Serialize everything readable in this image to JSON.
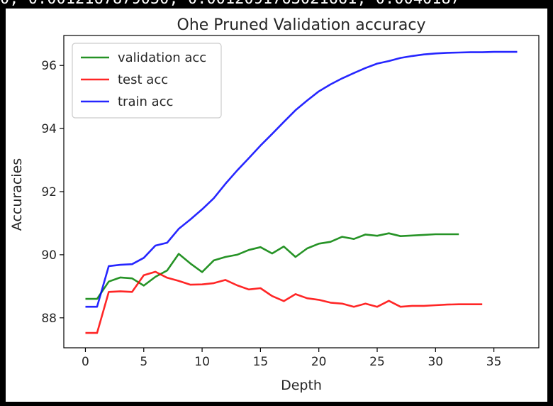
{
  "top_strip_text": "0, 0.0012167879050, 0.0012091763021661, 0.0040187",
  "chart_data": {
    "type": "line",
    "title": "Ohe Pruned Validation accuracy",
    "xlabel": "Depth",
    "ylabel": "Accuracies",
    "xlim": [
      -1.85,
      38.85
    ],
    "ylim": [
      87.05,
      96.95
    ],
    "xticks": [
      0,
      5,
      10,
      15,
      20,
      25,
      30,
      35
    ],
    "yticks": [
      88,
      90,
      92,
      94,
      96
    ],
    "grid": false,
    "legend_position": "top-left",
    "series": [
      {
        "name": "validation acc",
        "color": "#008000",
        "x": [
          0,
          1,
          2,
          3,
          4,
          5,
          6,
          7,
          8,
          9,
          10,
          11,
          12,
          13,
          14,
          15,
          16,
          17,
          18,
          19,
          20,
          21,
          22,
          23,
          24,
          25,
          26,
          27,
          28,
          29,
          30,
          31,
          32
        ],
        "y": [
          88.6,
          88.6,
          89.15,
          89.28,
          89.25,
          89.02,
          89.3,
          89.5,
          90.03,
          89.72,
          89.45,
          89.82,
          89.93,
          90.0,
          90.15,
          90.24,
          90.04,
          90.26,
          89.93,
          90.2,
          90.35,
          90.41,
          90.57,
          90.5,
          90.64,
          90.6,
          90.68,
          90.59,
          90.61,
          90.63,
          90.65,
          90.65,
          90.65
        ]
      },
      {
        "name": "test acc",
        "color": "#ff0000",
        "x": [
          0,
          1,
          2,
          3,
          4,
          5,
          6,
          7,
          8,
          9,
          10,
          11,
          12,
          13,
          14,
          15,
          16,
          17,
          18,
          19,
          20,
          21,
          22,
          23,
          24,
          25,
          26,
          27,
          28,
          29,
          30,
          31,
          32,
          33,
          34
        ],
        "y": [
          87.52,
          87.52,
          88.82,
          88.84,
          88.82,
          89.35,
          89.46,
          89.27,
          89.17,
          89.05,
          89.06,
          89.1,
          89.2,
          89.03,
          88.9,
          88.94,
          88.69,
          88.53,
          88.75,
          88.62,
          88.57,
          88.48,
          88.45,
          88.35,
          88.45,
          88.35,
          88.54,
          88.35,
          88.38,
          88.38,
          88.4,
          88.42,
          88.43,
          88.43,
          88.43
        ]
      },
      {
        "name": "train acc",
        "color": "#0000ff",
        "x": [
          0,
          1,
          2,
          3,
          4,
          5,
          6,
          7,
          8,
          9,
          10,
          11,
          12,
          13,
          14,
          15,
          16,
          17,
          18,
          19,
          20,
          21,
          22,
          23,
          24,
          25,
          26,
          27,
          28,
          29,
          30,
          31,
          32,
          33,
          34,
          35,
          36,
          37
        ],
        "y": [
          88.35,
          88.35,
          89.64,
          89.68,
          89.7,
          89.9,
          90.29,
          90.38,
          90.82,
          91.12,
          91.44,
          91.79,
          92.25,
          92.67,
          93.06,
          93.46,
          93.83,
          94.21,
          94.58,
          94.89,
          95.18,
          95.4,
          95.59,
          95.76,
          95.92,
          96.06,
          96.14,
          96.24,
          96.3,
          96.35,
          96.38,
          96.4,
          96.41,
          96.42,
          96.42,
          96.43,
          96.43,
          96.43
        ]
      }
    ]
  }
}
